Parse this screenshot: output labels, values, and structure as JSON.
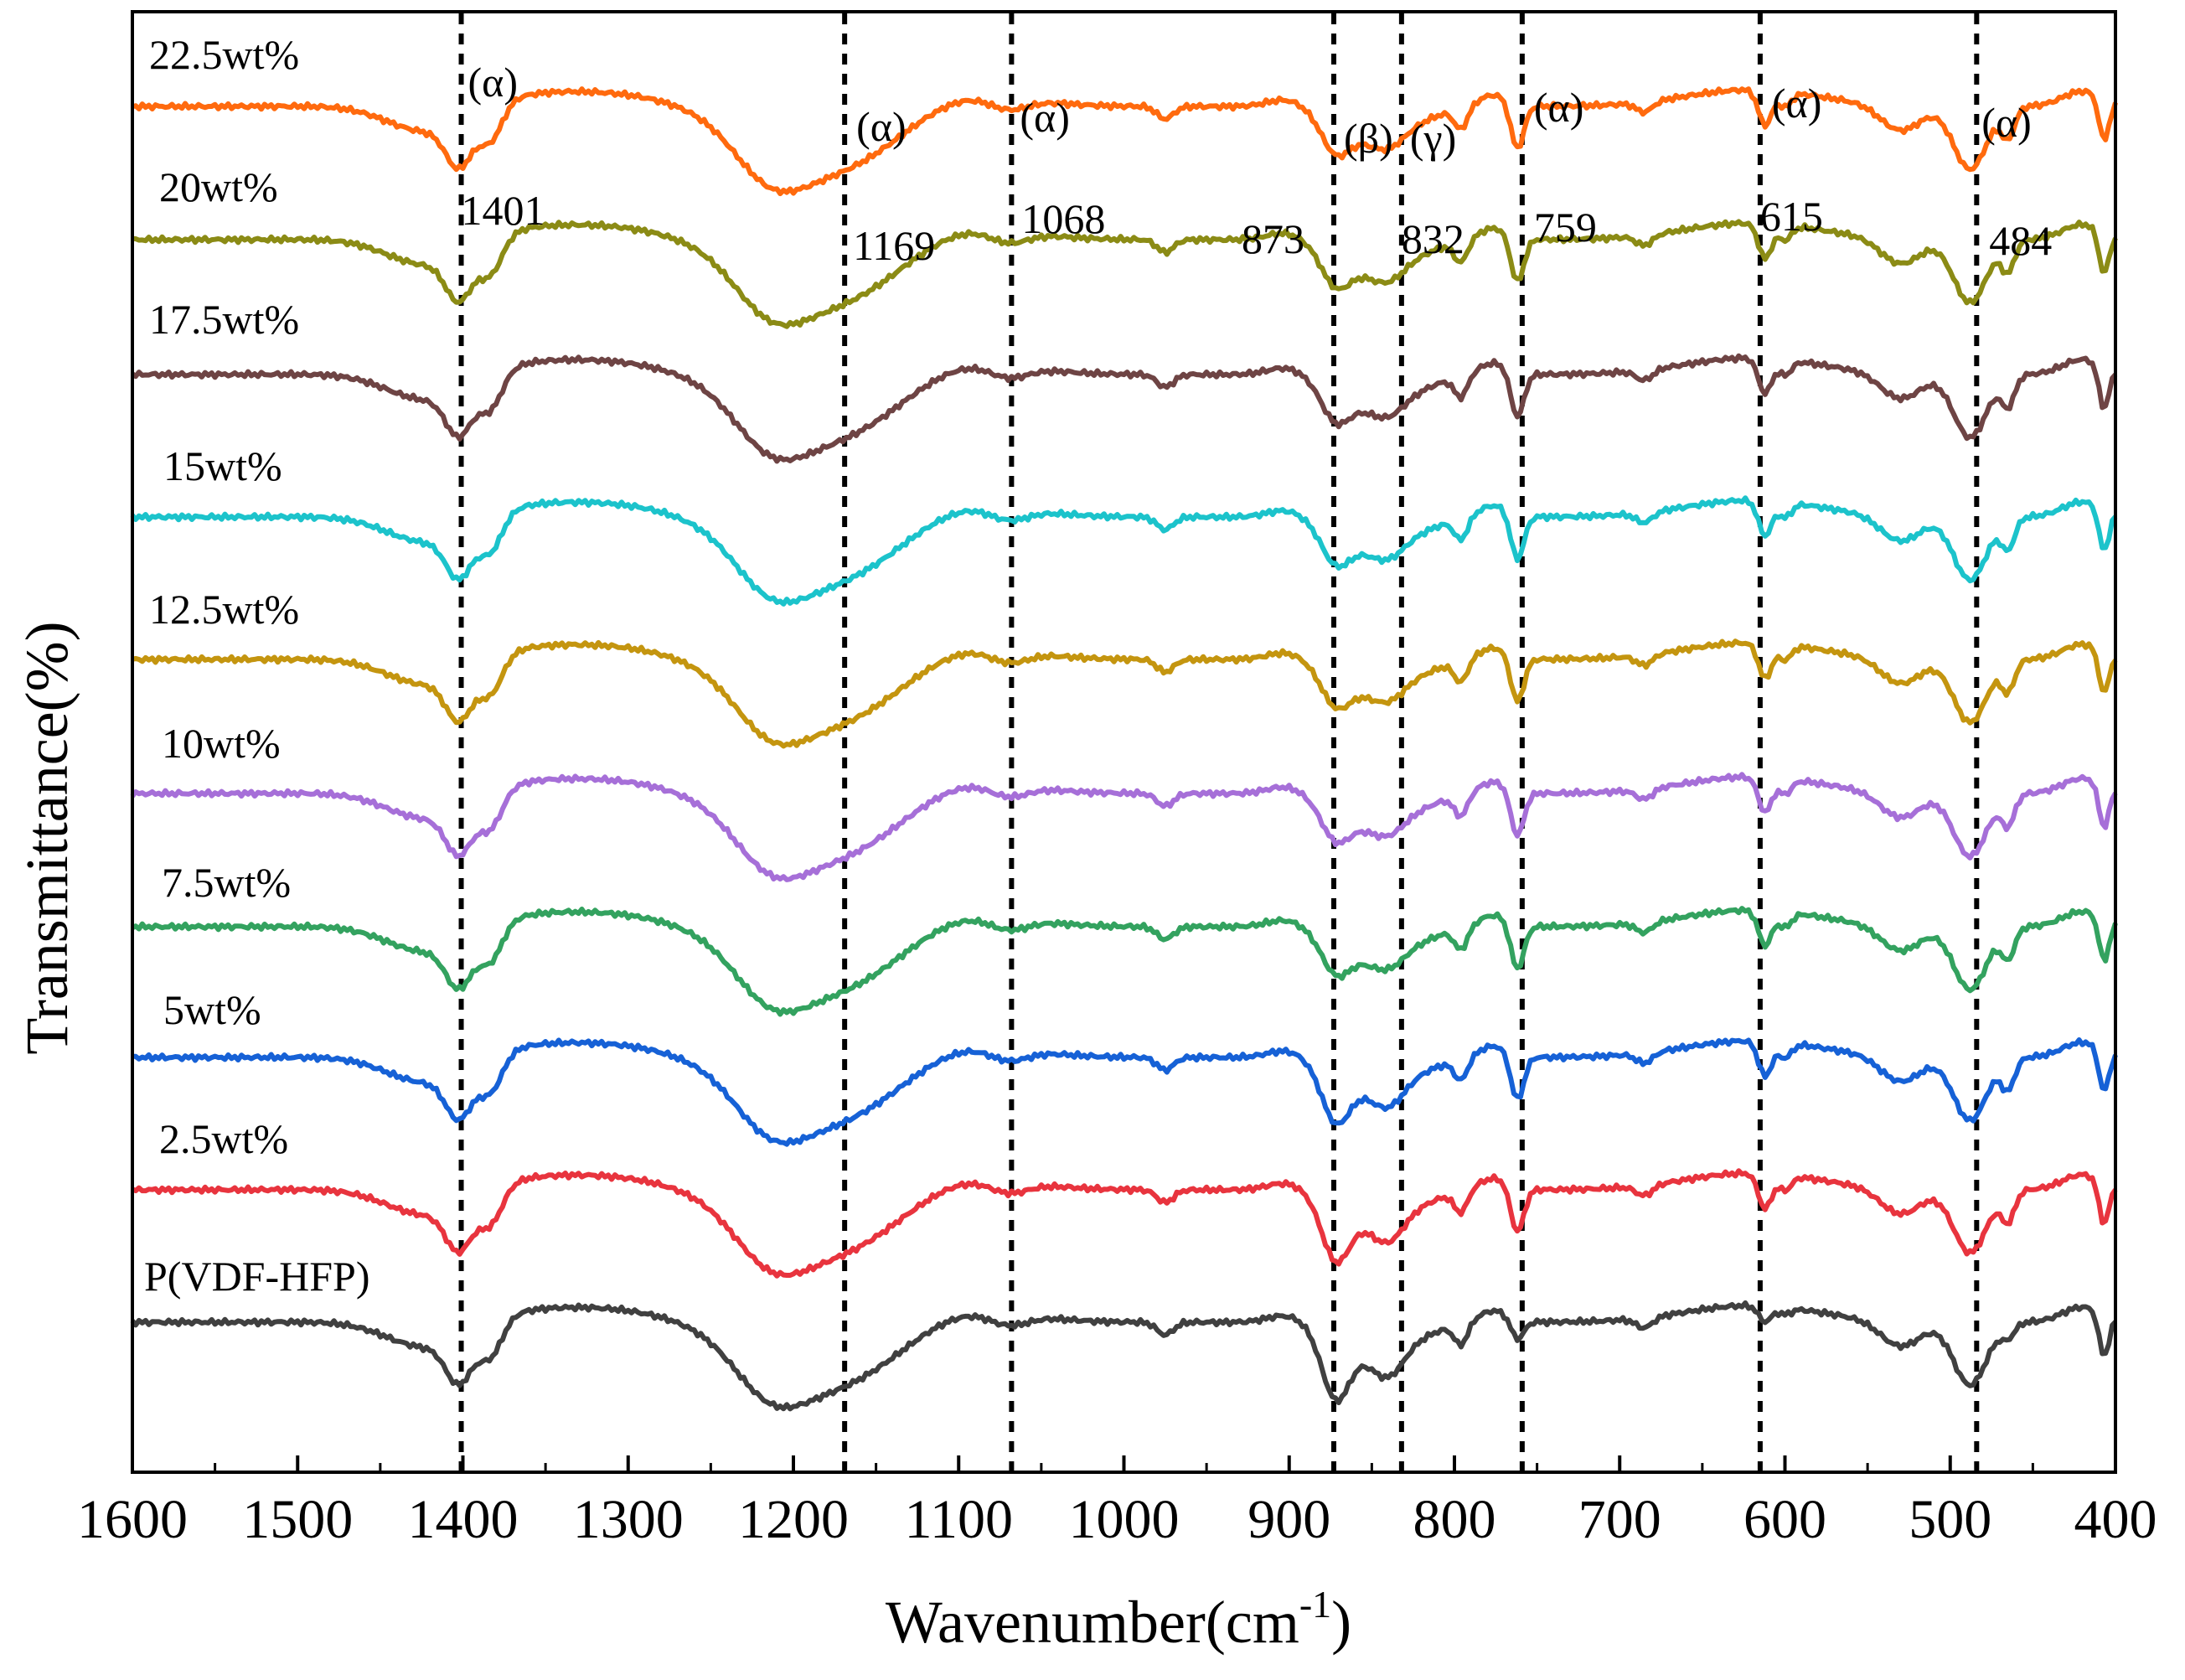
{
  "chart_data": {
    "type": "line",
    "xlabel": "Wavenumber(cm",
    "xlabel_sup": "-1",
    "xlabel_close": ")",
    "ylabel": "Transmittance(%)",
    "xlim": [
      1600,
      400
    ],
    "x_reversed": true,
    "xticks": [
      "1600",
      "1500",
      "1400",
      "1300",
      "1200",
      "1100",
      "1000",
      "900",
      "800",
      "700",
      "600",
      "500",
      "400"
    ],
    "grid": false,
    "y_offset_per_series": true,
    "series": [
      {
        "name": "22.5wt%",
        "color": "#FF6A0E"
      },
      {
        "name": "20wt%",
        "color": "#8B8B15"
      },
      {
        "name": "17.5wt%",
        "color": "#6E4444"
      },
      {
        "name": "15wt%",
        "color": "#1CC3CB"
      },
      {
        "name": "12.5wt%",
        "color": "#C4950F"
      },
      {
        "name": "10wt%",
        "color": "#A66FD8"
      },
      {
        "name": "7.5wt%",
        "color": "#33A25F"
      },
      {
        "name": "5wt%",
        "color": "#1661D6"
      },
      {
        "name": "2.5wt%",
        "color": "#E8343E"
      },
      {
        "name": "P(VDF-HFP)",
        "color": "#404040"
      }
    ],
    "annotations": [
      {
        "x": 1401,
        "phase": "(α)",
        "label": "1401"
      },
      {
        "x": 1169,
        "phase": "(α)",
        "label": "1169"
      },
      {
        "x": 1068,
        "phase": "(α)",
        "label": "1068"
      },
      {
        "x": 873,
        "phase": "(β)",
        "label": "873"
      },
      {
        "x": 832,
        "phase": "(γ)",
        "label": "832"
      },
      {
        "x": 759,
        "phase": "(α)",
        "label": "759"
      },
      {
        "x": 615,
        "phase": "(α)",
        "label": "615"
      },
      {
        "x": 484,
        "phase": "(α)",
        "label": "484"
      }
    ]
  }
}
